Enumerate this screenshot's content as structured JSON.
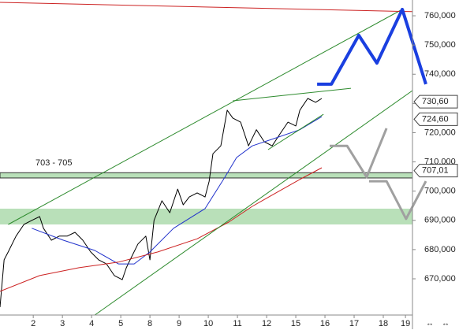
{
  "chart_data": {
    "type": "line",
    "xlim": [
      -1.14,
      13.0
    ],
    "ylim": [
      657.6,
      765.4
    ],
    "xticks": [
      {
        "value": 0,
        "label": "2"
      },
      {
        "value": 1,
        "label": "3"
      },
      {
        "value": 2,
        "label": "4"
      },
      {
        "value": 3,
        "label": "5"
      },
      {
        "value": 4,
        "label": "8"
      },
      {
        "value": 5,
        "label": "9"
      },
      {
        "value": 6,
        "label": "10"
      },
      {
        "value": 7,
        "label": "11"
      },
      {
        "value": 8,
        "label": "12"
      },
      {
        "value": 9,
        "label": "15"
      },
      {
        "value": 10,
        "label": "16"
      },
      {
        "value": 11,
        "label": "17"
      },
      {
        "value": 12,
        "label": "18"
      },
      {
        "value": 12.76,
        "label": "19"
      }
    ],
    "yticks": [
      {
        "value": 670,
        "label": "670,000"
      },
      {
        "value": 680,
        "label": "680,000"
      },
      {
        "value": 690,
        "label": "690,000"
      },
      {
        "value": 700,
        "label": "700,000"
      },
      {
        "value": 710,
        "label": "710,000"
      },
      {
        "value": 720,
        "label": "720,000"
      },
      {
        "value": 730,
        "label": "730,000"
      },
      {
        "value": 740,
        "label": "740,000"
      },
      {
        "value": 750,
        "label": "750,000"
      },
      {
        "value": 760,
        "label": "760,000"
      }
    ],
    "zones": [
      {
        "range": [
          704.5,
          706.3
        ],
        "label": "703 - 705",
        "color": "#b9e0b9"
      },
      {
        "range": [
          688.6,
          694.0
        ],
        "color": "#b9e0b9"
      }
    ],
    "tags": [
      {
        "value": 730.6,
        "label": "730,60"
      },
      {
        "value": 724.6,
        "label": "724,60"
      },
      {
        "value": 707.01,
        "label": "707,01"
      }
    ],
    "series": [
      {
        "color": "#000000",
        "width": 1,
        "x": [
          -1.14,
          -1.0,
          -0.86,
          -0.59,
          -0.32,
          -0.05,
          0.22,
          0.35,
          0.62,
          0.89,
          1.16,
          1.43,
          1.7,
          1.97,
          2.24,
          2.51,
          2.78,
          3.05,
          3.19,
          3.32,
          3.59,
          3.86,
          4.0,
          4.14,
          4.41,
          4.68,
          4.95,
          5.14,
          5.35,
          5.62,
          5.89,
          6.03,
          6.16,
          6.43,
          6.65,
          6.84,
          7.11,
          7.38,
          7.65,
          7.92,
          8.19,
          8.46,
          8.73,
          9.0,
          9.14,
          9.41,
          9.68,
          9.89
        ],
        "values": [
          660.3,
          676.5,
          679.2,
          684.6,
          688.6,
          690.0,
          691.3,
          687.3,
          683.2,
          684.6,
          684.6,
          685.9,
          683.2,
          679.2,
          676.5,
          675.1,
          671.1,
          669.7,
          673.8,
          676.5,
          681.9,
          684.6,
          676.5,
          690.0,
          696.7,
          692.6,
          700.7,
          695.3,
          698.0,
          699.4,
          698.0,
          703.4,
          712.8,
          715.5,
          727.7,
          725.0,
          723.6,
          715.5,
          721.0,
          716.9,
          715.5,
          719.6,
          723.6,
          722.3,
          727.7,
          731.7,
          730.4,
          731.7
        ]
      },
      {
        "color": "#2233cc",
        "width": 1,
        "x": [
          -0.05,
          1.03,
          2.11,
          2.92,
          3.46,
          4.0,
          4.81,
          5.89,
          6.57,
          6.97,
          7.51,
          8.32,
          9.14,
          9.89
        ],
        "values": [
          687.3,
          683.2,
          679.7,
          675.1,
          675.1,
          679.2,
          687.3,
          694.0,
          704.8,
          711.5,
          715.5,
          718.2,
          721.0,
          725.5
        ]
      },
      {
        "color": "#cc2222",
        "width": 1,
        "x": [
          -1.14,
          0.22,
          1.57,
          2.92,
          4.27,
          5.62,
          6.7,
          7.51,
          8.32,
          9.14,
          9.89
        ],
        "values": [
          665.7,
          671.1,
          673.8,
          675.7,
          679.2,
          683.7,
          689.4,
          694.8,
          699.4,
          704.0,
          708.0
        ]
      },
      {
        "color": "#2e8b2e",
        "width": 1,
        "x": [
          -0.86,
          12.65
        ],
        "values": [
          688.6,
          762.2
        ]
      },
      {
        "color": "#2e8b2e",
        "width": 1,
        "x": [
          2.11,
          13.0
        ],
        "values": [
          657.6,
          734.4
        ]
      },
      {
        "color": "#2e8b2e",
        "width": 1,
        "x": [
          6.84,
          10.89
        ],
        "values": [
          730.9,
          735.2
        ]
      },
      {
        "color": "#2e8b2e",
        "width": 1,
        "x": [
          8.05,
          9.95
        ],
        "values": [
          714.2,
          726.3
        ]
      },
      {
        "color": "#cc2222",
        "width": 1,
        "x": [
          -1.14,
          13.0
        ],
        "values": [
          764.6,
          761.4
        ]
      },
      {
        "color": "#1a3fe0",
        "width": 4,
        "x": [
          9.73,
          10.22,
          11.16,
          11.78,
          12.65,
          13.46
        ],
        "values": [
          736.6,
          736.6,
          753.3,
          743.8,
          762.2,
          736.6
        ]
      },
      {
        "color": "#a0a0a0",
        "width": 3,
        "x": [
          10.16,
          10.76,
          11.43,
          12.11
        ],
        "values": [
          715.5,
          715.5,
          704.8,
          721.5
        ]
      },
      {
        "color": "#a0a0a0",
        "width": 3,
        "x": [
          11.51,
          12.11,
          12.78,
          13.46
        ],
        "values": [
          703.4,
          703.4,
          690.5,
          703.4
        ]
      }
    ]
  }
}
